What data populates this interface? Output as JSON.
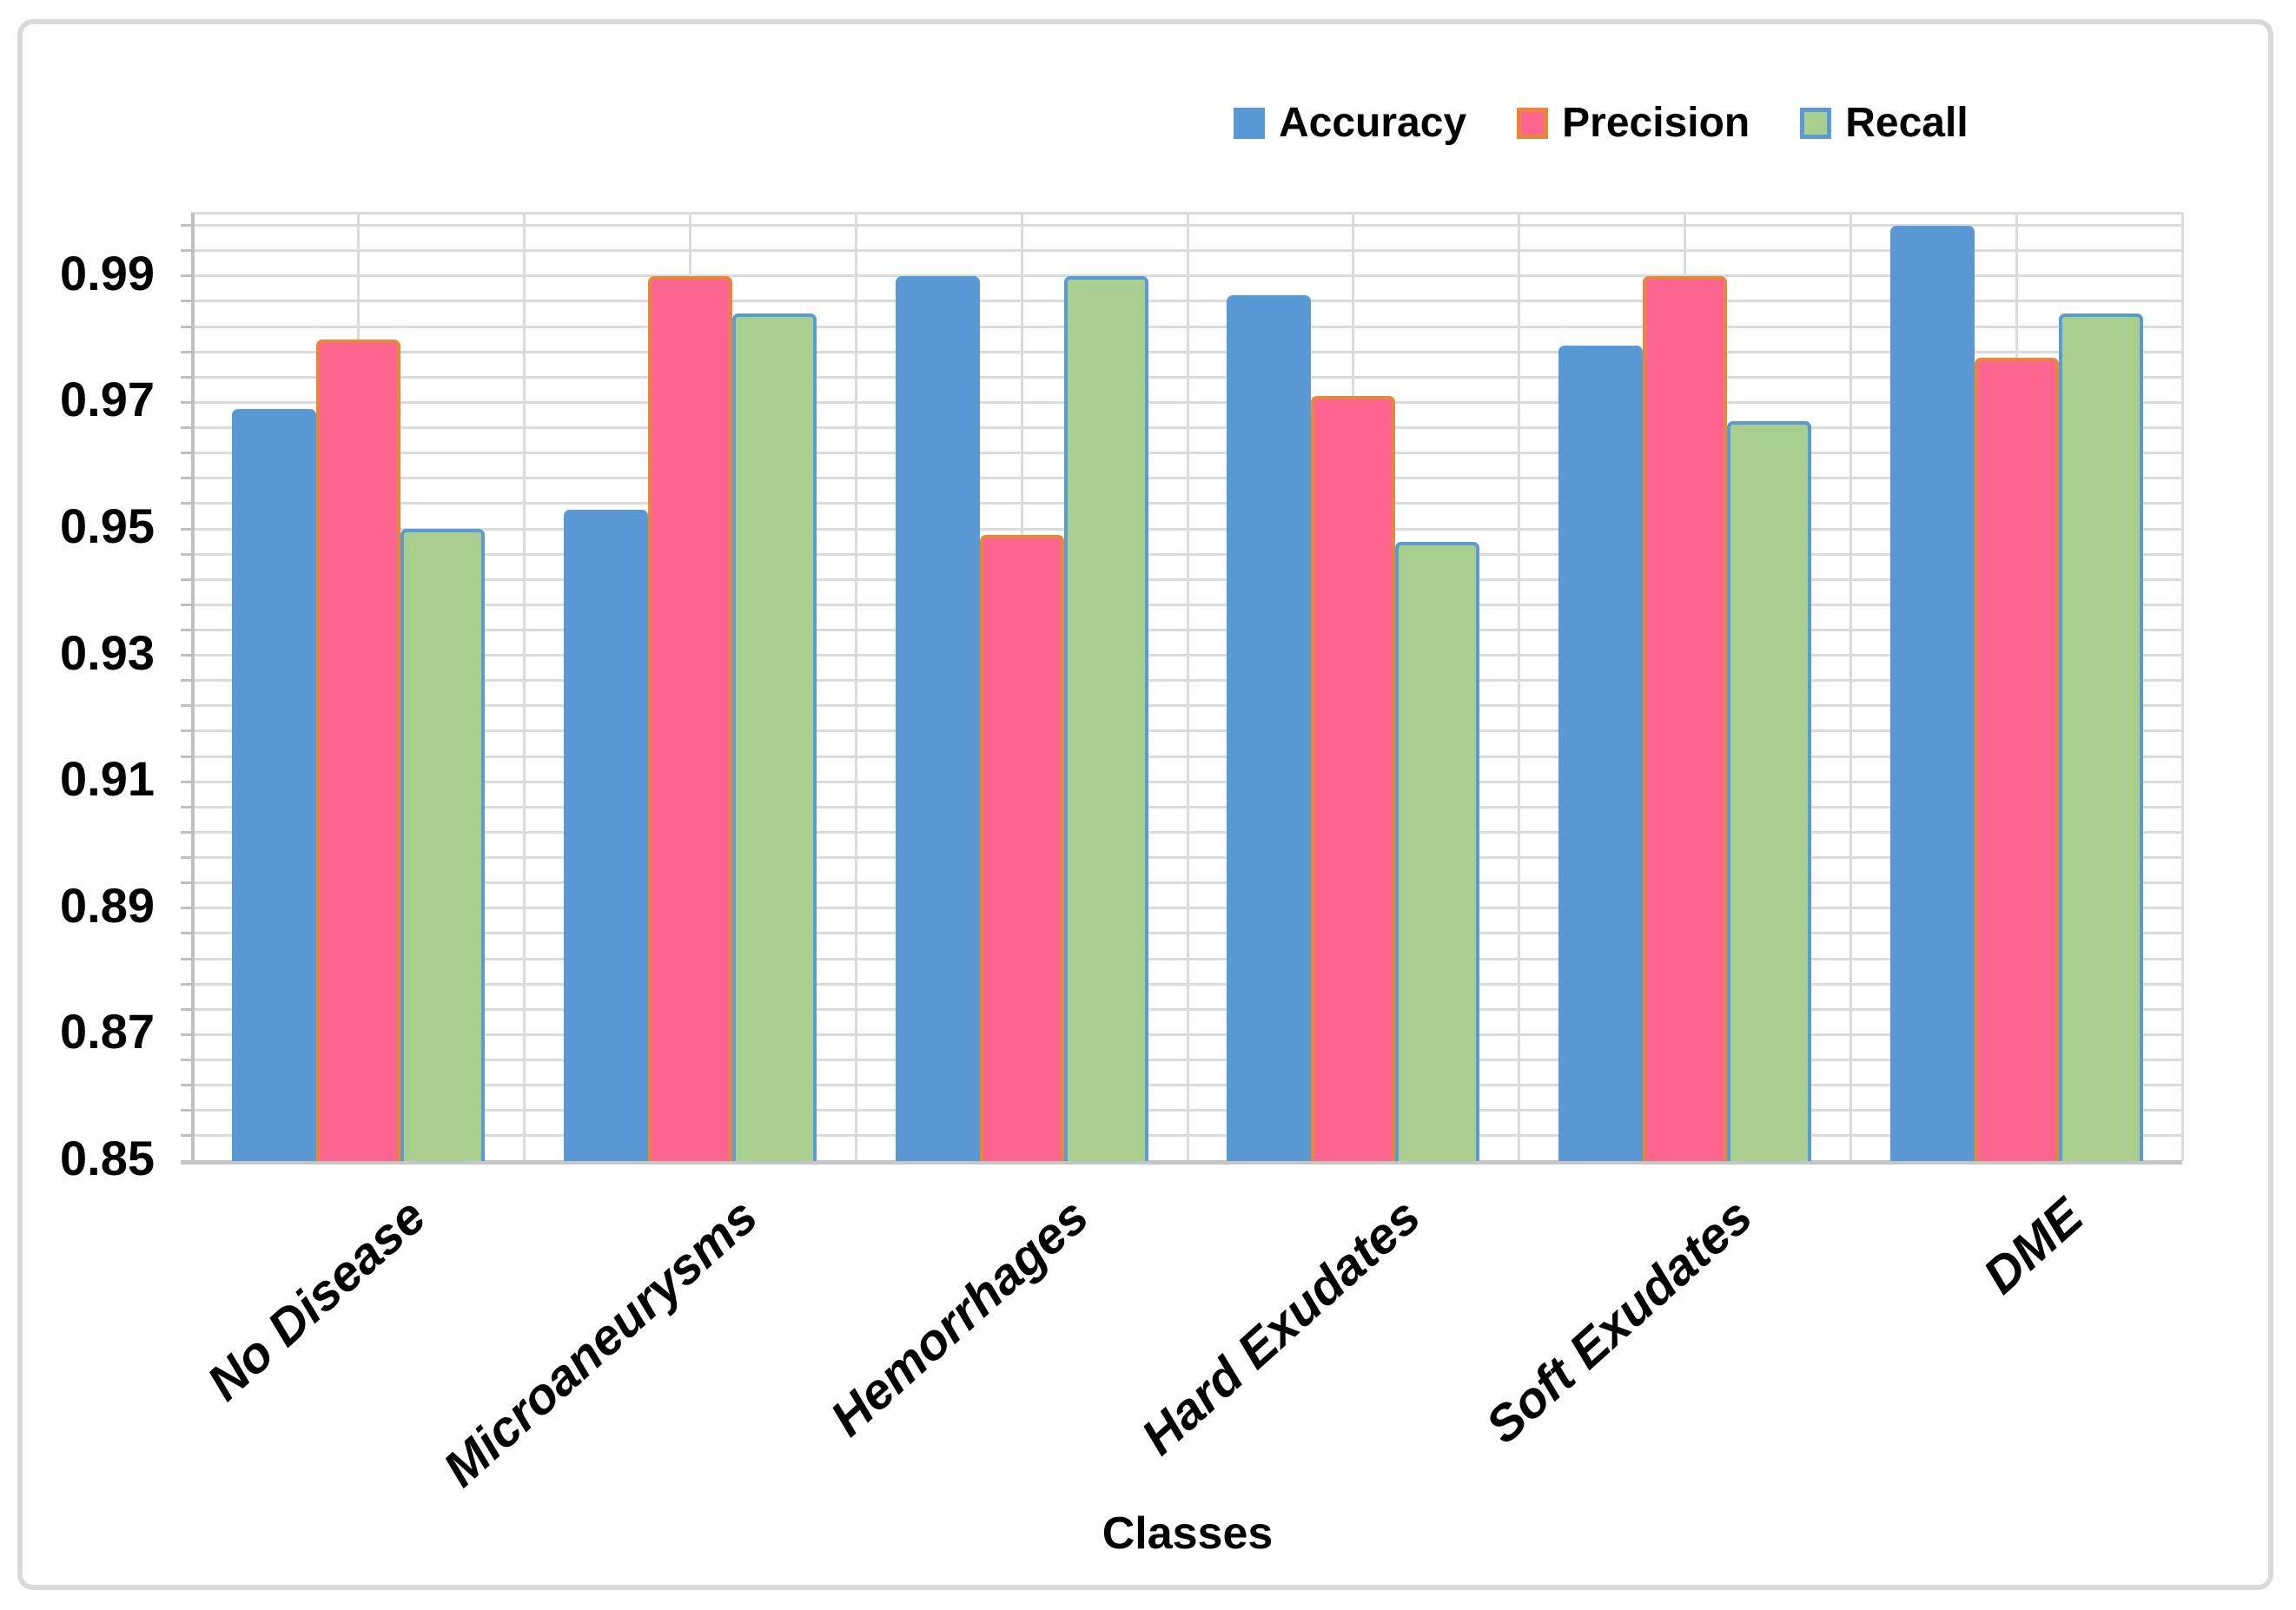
{
  "chart_data": {
    "type": "bar",
    "title": "",
    "xlabel": "Classes",
    "ylabel": "",
    "categories": [
      "No Disease",
      "Microaneurysms",
      "Hemorrhages",
      "Hard Exudates",
      "Soft Exudates",
      "DME"
    ],
    "series": [
      {
        "name": "Accuracy",
        "values": [
          0.969,
          0.953,
          0.99,
          0.987,
          0.979,
          0.998
        ],
        "fill": "#5A99D3",
        "border": "#5A99D3"
      },
      {
        "name": "Precision",
        "values": [
          0.98,
          0.99,
          0.949,
          0.971,
          0.99,
          0.977
        ],
        "fill": "#FC6590",
        "border": "#E8863A"
      },
      {
        "name": "Recall",
        "values": [
          0.95,
          0.984,
          0.99,
          0.948,
          0.967,
          0.984
        ],
        "fill": "#A8CF8E",
        "border": "#5B9BD5"
      }
    ],
    "ylim": [
      0.85,
      1.0
    ],
    "yticks": [
      0.99,
      0.97,
      0.95,
      0.93,
      0.91,
      0.89,
      0.87,
      0.85
    ],
    "ytick_major_step": 0.02,
    "minor_gridline_step": 0.004,
    "grid_on": true,
    "grid_color": "#DBDBDB",
    "axis_color": "#C0C0C0",
    "legend_position": "top",
    "legend": [
      "Accuracy",
      "Precision",
      "Recall"
    ]
  }
}
